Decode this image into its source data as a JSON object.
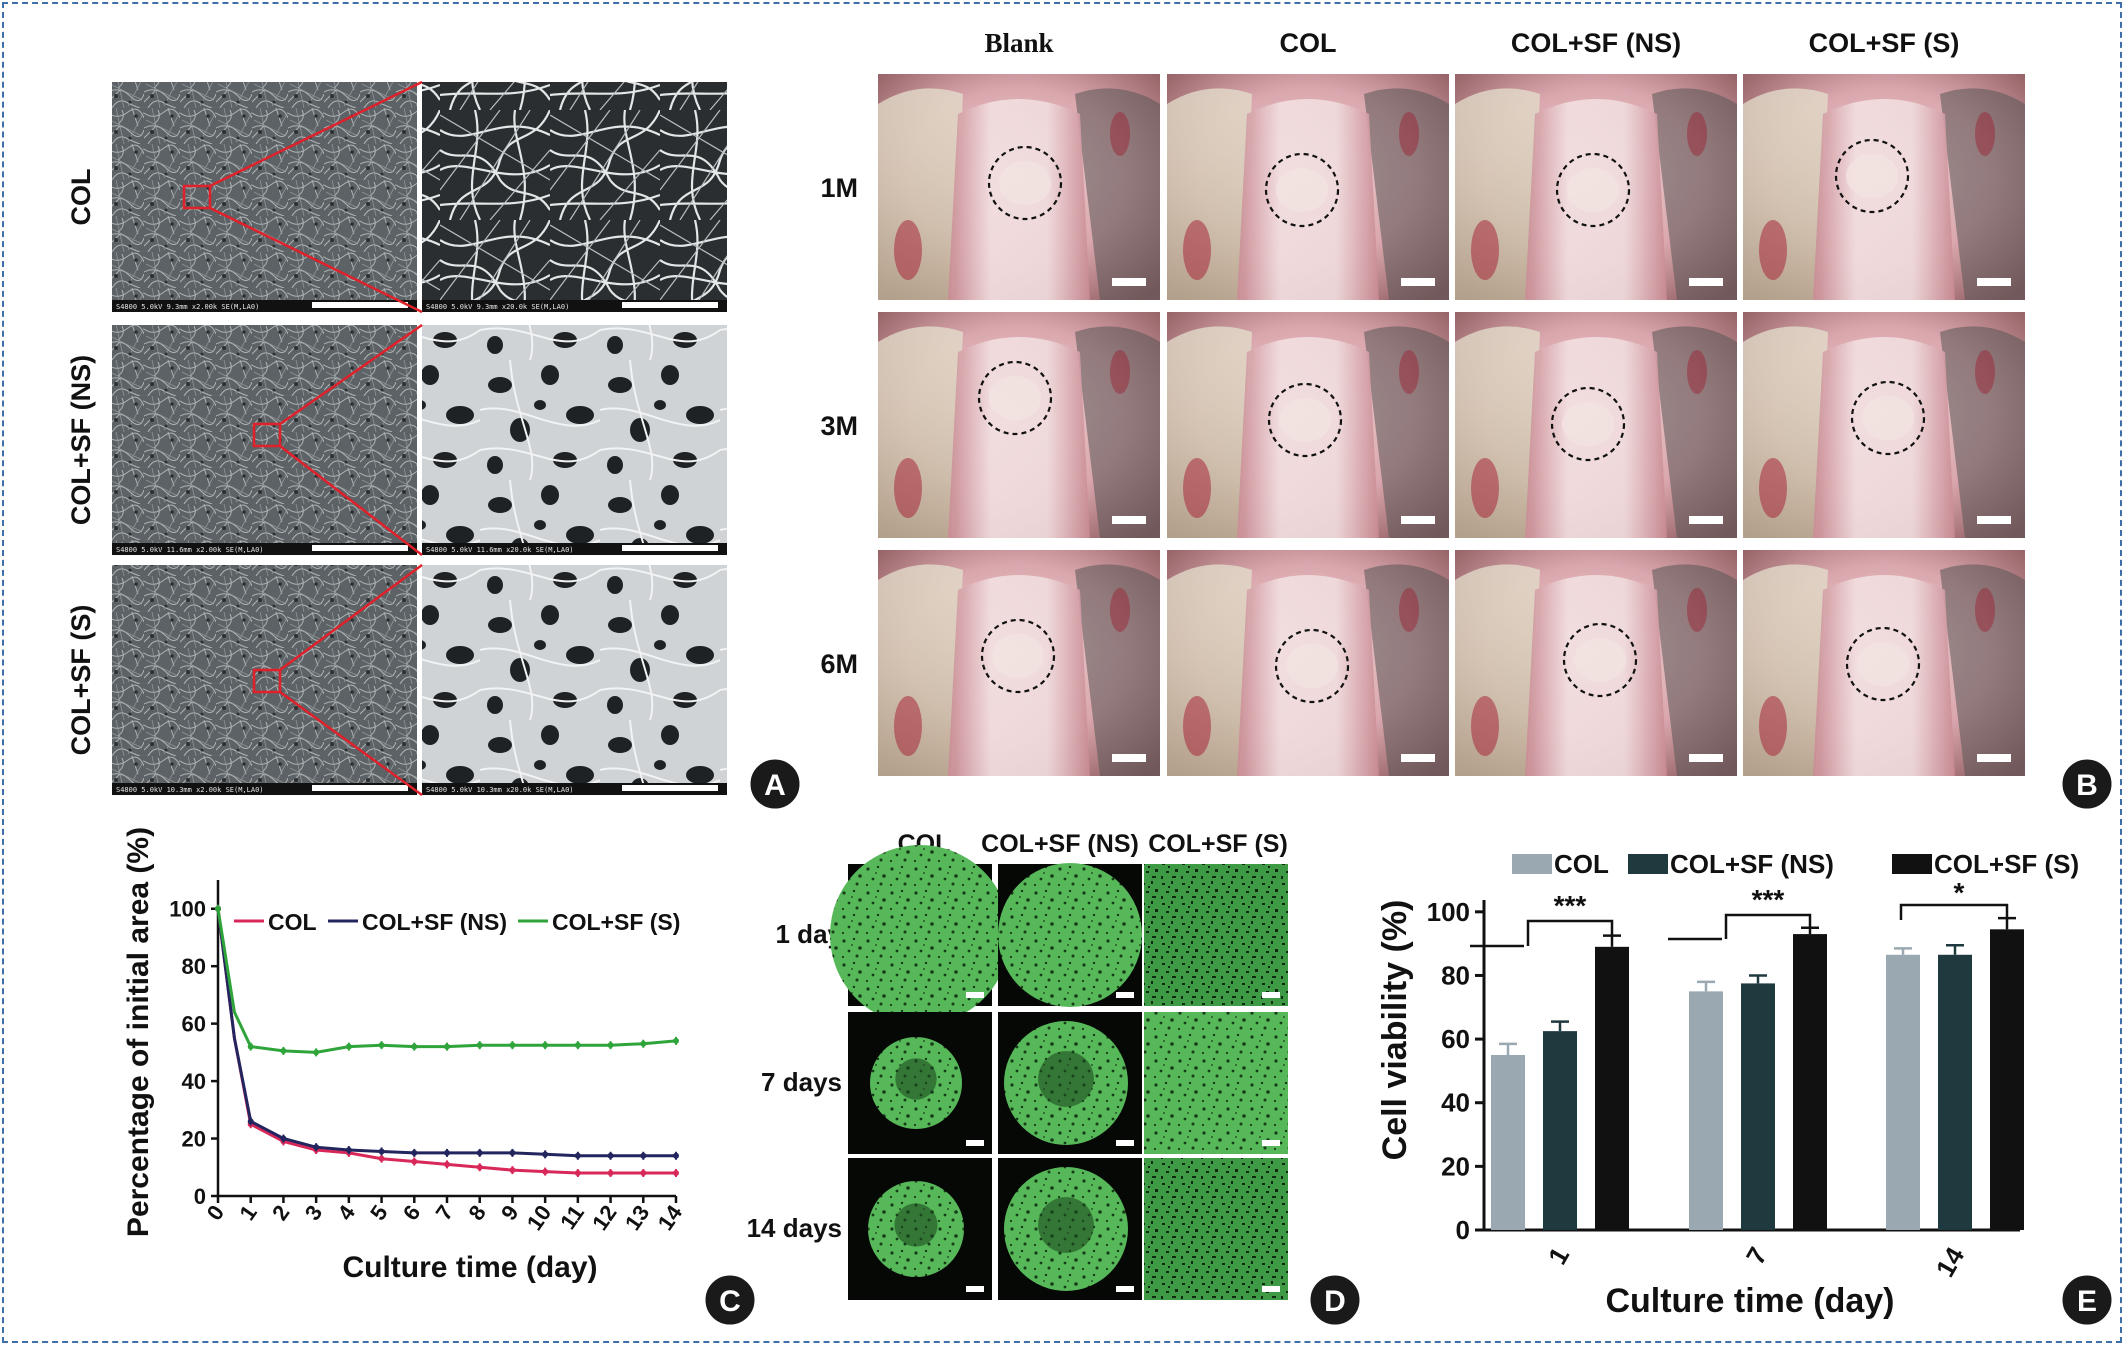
{
  "panel_a": {
    "rows": [
      "COL",
      "COL+SF (NS)",
      "COL+SF (S)"
    ],
    "captions_low": [
      "S4800 5.0kV 9.3mm x2.00k SE(M,LA0)",
      "S4800 5.0kV 11.6mm x2.00k SE(M,LA0)",
      "S4800 5.0kV 10.3mm x2.00k SE(M,LA0)"
    ],
    "captions_high": [
      "S4800 5.0kV 9.3mm x20.0k SE(M,LA0)",
      "S4800 5.0kV 11.6mm x20.0k SE(M,LA0)",
      "S4800 5.0kV 10.3mm x20.0k SE(M,LA0)"
    ],
    "badge": "A"
  },
  "panel_b": {
    "columns": [
      "Blank",
      "COL",
      "COL+SF (NS)",
      "COL+SF (S)"
    ],
    "rows": [
      "1M",
      "3M",
      "6M"
    ],
    "badge": "B"
  },
  "panel_c": {
    "badge": "C",
    "chart_data": {
      "type": "line",
      "xlabel": "Culture time (day)",
      "ylabel": "Percentage of initial area (%)",
      "xlim": [
        0,
        14
      ],
      "ylim": [
        0,
        110
      ],
      "x_ticks": [
        "0",
        "1",
        "2",
        "3",
        "4",
        "5",
        "6",
        "7",
        "8",
        "9",
        "10",
        "11",
        "12",
        "13",
        "14"
      ],
      "y_ticks": [
        "0",
        "20",
        "40",
        "60",
        "80",
        "100"
      ],
      "legend": "top",
      "series": [
        {
          "name": "COL",
          "color": "#d8285a",
          "x": [
            0,
            0.5,
            1,
            2,
            3,
            4,
            5,
            6,
            7,
            8,
            9,
            10,
            11,
            12,
            13,
            14
          ],
          "y": [
            100,
            55,
            25,
            19,
            16,
            15,
            13,
            12,
            11,
            10,
            9,
            8.5,
            8,
            8,
            8,
            8
          ]
        },
        {
          "name": "COL+SF (NS)",
          "color": "#23255e",
          "x": [
            0,
            0.5,
            1,
            2,
            3,
            4,
            5,
            6,
            7,
            8,
            9,
            10,
            11,
            12,
            13,
            14
          ],
          "y": [
            100,
            55,
            26,
            20,
            17,
            16,
            15.5,
            15,
            15,
            15,
            15,
            14.5,
            14,
            14,
            14,
            14
          ]
        },
        {
          "name": "COL+SF (S)",
          "color": "#2fa43b",
          "x": [
            0,
            0.5,
            1,
            2,
            3,
            4,
            5,
            6,
            7,
            8,
            9,
            10,
            11,
            12,
            13,
            14
          ],
          "y": [
            100,
            64,
            52,
            50.5,
            50,
            52,
            52.5,
            52,
            52,
            52.5,
            52.5,
            52.5,
            52.5,
            52.5,
            53,
            54
          ]
        }
      ]
    }
  },
  "panel_d": {
    "columns": [
      "COL",
      "COL+SF (NS)",
      "COL+SF (S)"
    ],
    "rows": [
      "1 day",
      "7 days",
      "14 days"
    ],
    "badge": "D"
  },
  "panel_e": {
    "badge": "E",
    "chart_data": {
      "type": "bar",
      "categories": [
        "1",
        "7",
        "14"
      ],
      "xlabel": "Culture time (day)",
      "ylabel": "Cell viability (%)",
      "ylim": [
        0,
        110
      ],
      "y_ticks": [
        "0",
        "20",
        "40",
        "60",
        "80",
        "100"
      ],
      "legend": "top",
      "series": [
        {
          "name": "COL",
          "color": "#9aa8b1",
          "values": [
            55,
            75,
            86.5
          ],
          "errors": [
            3.5,
            3,
            2
          ]
        },
        {
          "name": "COL+SF (NS)",
          "color": "#1f3a3f",
          "values": [
            62.5,
            77.5,
            86.5
          ],
          "errors": [
            3,
            2.5,
            3
          ]
        },
        {
          "name": "COL+SF (S)",
          "color": "#111111",
          "values": [
            89,
            93,
            94.5
          ],
          "errors": [
            3.5,
            2,
            3.5
          ]
        }
      ],
      "significance": [
        "***",
        "***",
        "*"
      ]
    }
  }
}
